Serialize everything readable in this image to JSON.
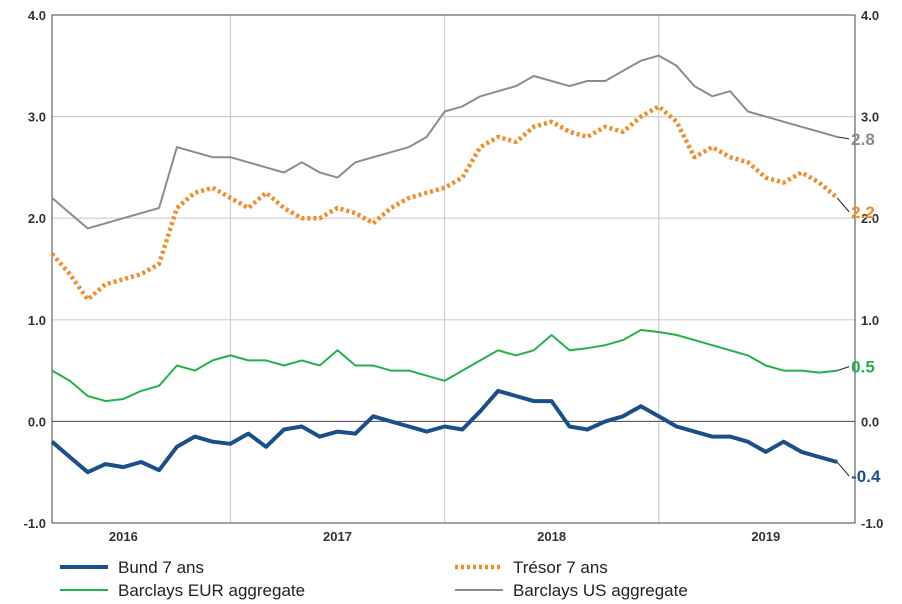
{
  "chart_data": {
    "type": "line",
    "title": "",
    "xlabel": "",
    "ylabel": "",
    "ylim": [
      -1.0,
      4.0
    ],
    "yticks": [
      "-1.0",
      "0.0",
      "1.0",
      "2.0",
      "3.0",
      "4.0"
    ],
    "xticks": [
      "2016",
      "2017",
      "2018",
      "2019"
    ],
    "xlim": [
      "2015-09",
      "2019-06"
    ],
    "grid": true,
    "legend_position": "bottom",
    "series": [
      {
        "name": "Bund 7 ans",
        "color": "#1b4f8a",
        "style": "solid-thick",
        "end_label": "-0.4",
        "x": [
          "2015-09",
          "2015-10",
          "2015-11",
          "2015-12",
          "2016-01",
          "2016-02",
          "2016-03",
          "2016-04",
          "2016-05",
          "2016-06",
          "2016-07",
          "2016-08",
          "2016-09",
          "2016-10",
          "2016-11",
          "2016-12",
          "2017-01",
          "2017-02",
          "2017-03",
          "2017-04",
          "2017-05",
          "2017-06",
          "2017-07",
          "2017-08",
          "2017-09",
          "2017-10",
          "2017-11",
          "2017-12",
          "2018-01",
          "2018-02",
          "2018-03",
          "2018-04",
          "2018-05",
          "2018-06",
          "2018-07",
          "2018-08",
          "2018-09",
          "2018-10",
          "2018-11",
          "2018-12",
          "2019-01",
          "2019-02",
          "2019-03",
          "2019-04",
          "2019-05"
        ],
        "values": [
          -0.2,
          -0.35,
          -0.5,
          -0.42,
          -0.45,
          -0.4,
          -0.48,
          -0.25,
          -0.15,
          -0.2,
          -0.22,
          -0.12,
          -0.25,
          -0.08,
          -0.05,
          -0.15,
          -0.1,
          -0.12,
          0.05,
          0.0,
          -0.05,
          -0.1,
          -0.05,
          -0.08,
          0.1,
          0.3,
          0.25,
          0.2,
          0.2,
          -0.05,
          -0.08,
          0.0,
          0.05,
          0.15,
          0.05,
          -0.05,
          -0.1,
          -0.15,
          -0.15,
          -0.2,
          -0.3,
          -0.2,
          -0.3,
          -0.35,
          -0.4
        ]
      },
      {
        "name": "Trésor 7 ans",
        "color": "#f28c28",
        "style": "dotted",
        "end_label": "2.2",
        "x": [
          "2015-09",
          "2015-10",
          "2015-11",
          "2015-12",
          "2016-01",
          "2016-02",
          "2016-03",
          "2016-04",
          "2016-05",
          "2016-06",
          "2016-07",
          "2016-08",
          "2016-09",
          "2016-10",
          "2016-11",
          "2016-12",
          "2017-01",
          "2017-02",
          "2017-03",
          "2017-04",
          "2017-05",
          "2017-06",
          "2017-07",
          "2017-08",
          "2017-09",
          "2017-10",
          "2017-11",
          "2017-12",
          "2018-01",
          "2018-02",
          "2018-03",
          "2018-04",
          "2018-05",
          "2018-06",
          "2018-07",
          "2018-08",
          "2018-09",
          "2018-10",
          "2018-11",
          "2018-12",
          "2019-01",
          "2019-02",
          "2019-03",
          "2019-04",
          "2019-05"
        ],
        "values": [
          1.65,
          1.45,
          1.2,
          1.35,
          1.4,
          1.45,
          1.55,
          2.1,
          2.25,
          2.3,
          2.2,
          2.1,
          2.25,
          2.1,
          2.0,
          2.0,
          2.1,
          2.05,
          1.95,
          2.1,
          2.2,
          2.25,
          2.3,
          2.4,
          2.7,
          2.8,
          2.75,
          2.9,
          2.95,
          2.85,
          2.8,
          2.9,
          2.85,
          3.0,
          3.1,
          2.95,
          2.6,
          2.7,
          2.6,
          2.55,
          2.4,
          2.35,
          2.45,
          2.35,
          2.2
        ]
      },
      {
        "name": "Barclays EUR aggregate",
        "color": "#22b24c",
        "style": "solid",
        "end_label": "0.5",
        "x": [
          "2015-09",
          "2015-10",
          "2015-11",
          "2015-12",
          "2016-01",
          "2016-02",
          "2016-03",
          "2016-04",
          "2016-05",
          "2016-06",
          "2016-07",
          "2016-08",
          "2016-09",
          "2016-10",
          "2016-11",
          "2016-12",
          "2017-01",
          "2017-02",
          "2017-03",
          "2017-04",
          "2017-05",
          "2017-06",
          "2017-07",
          "2017-08",
          "2017-09",
          "2017-10",
          "2017-11",
          "2017-12",
          "2018-01",
          "2018-02",
          "2018-03",
          "2018-04",
          "2018-05",
          "2018-06",
          "2018-07",
          "2018-08",
          "2018-09",
          "2018-10",
          "2018-11",
          "2018-12",
          "2019-01",
          "2019-02",
          "2019-03",
          "2019-04",
          "2019-05"
        ],
        "values": [
          0.5,
          0.4,
          0.25,
          0.2,
          0.22,
          0.3,
          0.35,
          0.55,
          0.5,
          0.6,
          0.65,
          0.6,
          0.6,
          0.55,
          0.6,
          0.55,
          0.7,
          0.55,
          0.55,
          0.5,
          0.5,
          0.45,
          0.4,
          0.5,
          0.6,
          0.7,
          0.65,
          0.7,
          0.85,
          0.7,
          0.72,
          0.75,
          0.8,
          0.9,
          0.88,
          0.85,
          0.8,
          0.75,
          0.7,
          0.65,
          0.55,
          0.5,
          0.5,
          0.48,
          0.5
        ]
      },
      {
        "name": "Barclays US aggregate",
        "color": "#8c8c8c",
        "style": "solid",
        "end_label": "2.8",
        "x": [
          "2015-09",
          "2015-10",
          "2015-11",
          "2015-12",
          "2016-01",
          "2016-02",
          "2016-03",
          "2016-04",
          "2016-05",
          "2016-06",
          "2016-07",
          "2016-08",
          "2016-09",
          "2016-10",
          "2016-11",
          "2016-12",
          "2017-01",
          "2017-02",
          "2017-03",
          "2017-04",
          "2017-05",
          "2017-06",
          "2017-07",
          "2017-08",
          "2017-09",
          "2017-10",
          "2017-11",
          "2017-12",
          "2018-01",
          "2018-02",
          "2018-03",
          "2018-04",
          "2018-05",
          "2018-06",
          "2018-07",
          "2018-08",
          "2018-09",
          "2018-10",
          "2018-11",
          "2018-12",
          "2019-01",
          "2019-02",
          "2019-03",
          "2019-04",
          "2019-05"
        ],
        "values": [
          2.2,
          2.05,
          1.9,
          1.95,
          2.0,
          2.05,
          2.1,
          2.7,
          2.65,
          2.6,
          2.6,
          2.55,
          2.5,
          2.45,
          2.55,
          2.45,
          2.4,
          2.55,
          2.6,
          2.65,
          2.7,
          2.8,
          3.05,
          3.1,
          3.2,
          3.25,
          3.3,
          3.4,
          3.35,
          3.3,
          3.35,
          3.35,
          3.45,
          3.55,
          3.6,
          3.5,
          3.3,
          3.2,
          3.25,
          3.05,
          3.0,
          2.95,
          2.9,
          2.85,
          2.8
        ]
      }
    ]
  }
}
